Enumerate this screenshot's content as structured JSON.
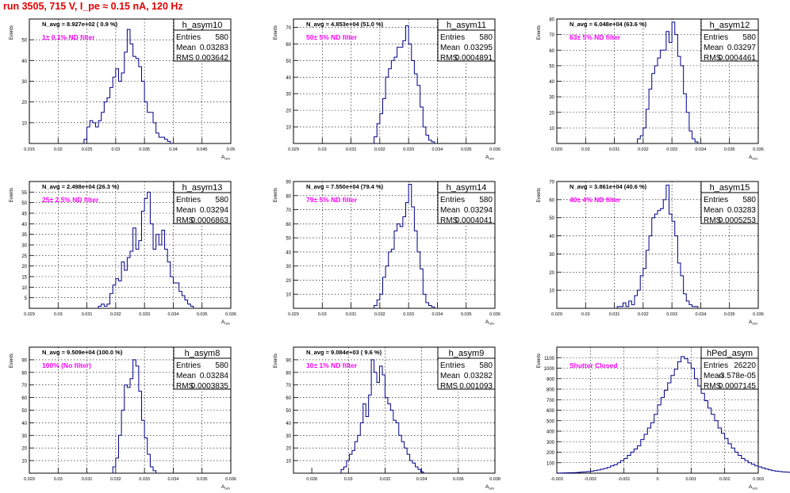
{
  "page": {
    "run_title": "run 3505,   715 V, I_pe ≈ 0.15 nA, 120 Hz"
  },
  "colors": {
    "histogram_line": "#00008b",
    "annotation": "#ff00ff",
    "title_text": "#e00000",
    "grid": "#000000"
  },
  "chart_data": [
    {
      "type": "histogram",
      "name": "h_asym10",
      "title": "h_asym10",
      "xlabel": "A_UID",
      "ylabel": "Events",
      "xlim": [
        0.015,
        0.05
      ],
      "ylim": [
        0,
        60
      ],
      "xticks": [
        0.015,
        0.02,
        0.025,
        0.03,
        0.035,
        0.04,
        0.045,
        0.05
      ],
      "xtick_labels": [
        "0.015",
        "0.02",
        "0.025",
        "0.03",
        "0.035",
        "0.04",
        "0.045",
        "0.05"
      ],
      "yticks": [
        10,
        20,
        30,
        40,
        50
      ],
      "stats": {
        "entries": "580",
        "mean": "0.03283",
        "rms": "0.003642"
      },
      "navg": "N_avg = 8.927e+02 ( 0.9 %)",
      "filter": "1± 0.1% ND filter",
      "bin_start": 0.0245,
      "bin_width": 0.0005,
      "values": [
        2,
        8,
        11,
        10,
        8,
        11,
        15,
        20,
        22,
        27,
        32,
        36,
        30,
        34,
        44,
        55,
        48,
        42,
        41,
        37,
        30,
        20,
        15,
        15,
        10,
        5,
        3,
        3,
        2,
        1
      ]
    },
    {
      "type": "histogram",
      "name": "h_asym11",
      "title": "h_asym11",
      "xlabel": "A_UID",
      "ylabel": "Events",
      "xlim": [
        0.029,
        0.036
      ],
      "ylim": [
        0,
        75
      ],
      "xticks": [
        0.029,
        0.03,
        0.031,
        0.032,
        0.033,
        0.034,
        0.035,
        0.036
      ],
      "xtick_labels": [
        "0.029",
        "0.03",
        "0.031",
        "0.032",
        "0.033",
        "0.034",
        "0.035",
        "0.036"
      ],
      "yticks": [
        10,
        20,
        30,
        40,
        50,
        60,
        70
      ],
      "stats": {
        "entries": "580",
        "mean": "0.03295",
        "rms": "0.0004891"
      },
      "navg": "N_avg = 4.853e+04 (51.0 %)",
      "filter": "50± 5% ND filter",
      "bin_start": 0.0318,
      "bin_width": 0.0001,
      "values": [
        4,
        12,
        18,
        27,
        40,
        45,
        50,
        52,
        58,
        58,
        62,
        71,
        60,
        50,
        42,
        35,
        22,
        10,
        5,
        2,
        1
      ]
    },
    {
      "type": "histogram",
      "name": "h_asym12",
      "title": "h_asym12",
      "xlabel": "A_UID",
      "ylabel": "Events",
      "xlim": [
        0.029,
        0.036
      ],
      "ylim": [
        0,
        80
      ],
      "xticks": [
        0.029,
        0.03,
        0.031,
        0.032,
        0.033,
        0.034,
        0.035,
        0.036
      ],
      "xtick_labels": [
        "0.029",
        "0.03",
        "0.031",
        "0.032",
        "0.033",
        "0.034",
        "0.035",
        "0.036"
      ],
      "yticks": [
        10,
        20,
        30,
        40,
        50,
        60,
        70,
        80
      ],
      "stats": {
        "entries": "580",
        "mean": "0.03297",
        "rms": "0.0004461"
      },
      "navg": "N_avg = 6.048e+04 (63.6 %)",
      "filter": "63± 5% ND filter",
      "bin_start": 0.0318,
      "bin_width": 0.0001,
      "values": [
        3,
        5,
        10,
        22,
        35,
        45,
        50,
        55,
        60,
        60,
        72,
        65,
        78,
        70,
        56,
        50,
        32,
        20,
        8,
        3,
        1
      ]
    },
    {
      "type": "histogram",
      "name": "h_asym13",
      "title": "h_asym13",
      "xlabel": "A_UID",
      "ylabel": "Events",
      "xlim": [
        0.029,
        0.036
      ],
      "ylim": [
        0,
        60
      ],
      "xticks": [
        0.029,
        0.03,
        0.031,
        0.032,
        0.033,
        0.034,
        0.035,
        0.036
      ],
      "xtick_labels": [
        "0.029",
        "0.03",
        "0.031",
        "0.032",
        "0.033",
        "0.034",
        "0.035",
        "0.036"
      ],
      "yticks": [
        5,
        10,
        15,
        20,
        25,
        30,
        35,
        40,
        45,
        50,
        55
      ],
      "stats": {
        "entries": "580",
        "mean": "0.03294",
        "rms": "0.0006863"
      },
      "navg": "N_avg = 2.498e+04 (26.3 %)",
      "filter": "25± 2.5% ND filter",
      "bin_start": 0.0314,
      "bin_width": 0.0001,
      "values": [
        1,
        2,
        1,
        2,
        7,
        11,
        14,
        13,
        22,
        18,
        24,
        27,
        38,
        28,
        32,
        46,
        52,
        55,
        40,
        28,
        35,
        30,
        37,
        28,
        22,
        15,
        12,
        12,
        8,
        6,
        4,
        2,
        1
      ]
    },
    {
      "type": "histogram",
      "name": "h_asym14",
      "title": "h_asym14",
      "xlabel": "A_UID",
      "ylabel": "Events",
      "xlim": [
        0.029,
        0.036
      ],
      "ylim": [
        0,
        90
      ],
      "xticks": [
        0.029,
        0.03,
        0.031,
        0.032,
        0.033,
        0.034,
        0.035,
        0.036
      ],
      "xtick_labels": [
        "0.029",
        "0.03",
        "0.031",
        "0.032",
        "0.033",
        "0.034",
        "0.035",
        "0.036"
      ],
      "yticks": [
        10,
        20,
        30,
        40,
        50,
        60,
        70,
        80,
        90
      ],
      "stats": {
        "entries": "580",
        "mean": "0.03294",
        "rms": "0.0004041"
      },
      "navg": "N_avg = 7.550e+04 (79.4 %)",
      "filter": "79± 5% ND filter",
      "bin_start": 0.0318,
      "bin_width": 0.0001,
      "values": [
        2,
        6,
        10,
        22,
        30,
        40,
        42,
        55,
        60,
        58,
        65,
        75,
        88,
        72,
        55,
        40,
        28,
        10,
        4,
        2,
        1
      ]
    },
    {
      "type": "histogram",
      "name": "h_asym15",
      "title": "h_asym15",
      "xlabel": "A_UID",
      "ylabel": "Events",
      "xlim": [
        0.029,
        0.036
      ],
      "ylim": [
        0,
        70
      ],
      "xticks": [
        0.029,
        0.03,
        0.031,
        0.032,
        0.033,
        0.034,
        0.035,
        0.036
      ],
      "xtick_labels": [
        "0.029",
        "0.03",
        "0.031",
        "0.032",
        "0.033",
        "0.034",
        "0.035",
        "0.036"
      ],
      "yticks": [
        10,
        20,
        30,
        40,
        50,
        60,
        70
      ],
      "stats": {
        "entries": "580",
        "mean": "0.03283",
        "rms": "0.0005253"
      },
      "navg": "N_avg = 3.861e+04 (40.6 %)",
      "filter": "40± 4% ND filter",
      "bin_start": 0.0311,
      "bin_width": 0.0001,
      "values": [
        1,
        1,
        3,
        1,
        4,
        2,
        7,
        10,
        18,
        22,
        32,
        40,
        50,
        52,
        54,
        55,
        60,
        68,
        52,
        48,
        40,
        25,
        18,
        8,
        4,
        2,
        1,
        1
      ]
    },
    {
      "type": "histogram",
      "name": "h_asym8",
      "title": "h_asym8",
      "xlabel": "A_UID",
      "ylabel": "Events",
      "xlim": [
        0.029,
        0.036
      ],
      "ylim": [
        0,
        100
      ],
      "xticks": [
        0.029,
        0.03,
        0.031,
        0.032,
        0.033,
        0.034,
        0.035,
        0.036
      ],
      "xtick_labels": [
        "0.029",
        "0.03",
        "0.031",
        "0.032",
        "0.033",
        "0.034",
        "0.035",
        "0.036"
      ],
      "yticks": [
        10,
        20,
        30,
        40,
        50,
        60,
        70,
        80,
        90
      ],
      "stats": {
        "entries": "580",
        "mean": "0.03284",
        "rms": "0.0003835"
      },
      "navg": "N_avg = 9.509e+04 (100.0 %)",
      "filter": "100% (No filter)",
      "bin_start": 0.0319,
      "bin_width": 0.0001,
      "values": [
        5,
        12,
        30,
        50,
        70,
        68,
        75,
        90,
        85,
        65,
        42,
        28,
        15,
        5,
        2
      ]
    },
    {
      "type": "histogram",
      "name": "h_asym9",
      "title": "h_asym9",
      "xlabel": "A_UID",
      "ylabel": "Events",
      "xlim": [
        0.027,
        0.038
      ],
      "ylim": [
        0,
        100
      ],
      "xticks": [
        0.028,
        0.03,
        0.032,
        0.034,
        0.036,
        0.038
      ],
      "xtick_labels": [
        "0.028",
        "0.03",
        "0.032",
        "0.034",
        "0.036",
        "0.038"
      ],
      "yticks": [
        10,
        20,
        30,
        40,
        50,
        60,
        70,
        80,
        90
      ],
      "stats": {
        "entries": "580",
        "mean": "0.03282",
        "rms": "0.001093"
      },
      "navg": "N_avg = 9.084e+03 ( 9.6 %)",
      "filter": "10± 1% ND filter",
      "bin_start": 0.0296,
      "bin_width": 0.00015,
      "values": [
        3,
        5,
        10,
        15,
        18,
        25,
        30,
        40,
        55,
        45,
        62,
        90,
        80,
        72,
        85,
        78,
        60,
        55,
        50,
        42,
        40,
        30,
        25,
        20,
        15,
        10,
        8,
        5,
        3,
        1
      ]
    },
    {
      "type": "histogram",
      "name": "hPed_asym",
      "title": "hPed_asym",
      "xlabel": "A_UID",
      "ylabel": "Events",
      "xlim": [
        -0.003,
        0.003
      ],
      "ylim": [
        0,
        1200
      ],
      "xticks": [
        -0.003,
        -0.002,
        -0.001,
        0,
        0.001,
        0.002,
        0.003
      ],
      "xtick_labels": [
        "-0.003",
        "-0.002",
        "-0.001",
        "0",
        "0.001",
        "0.002",
        "0.003"
      ],
      "yticks": [
        100,
        200,
        300,
        400,
        500,
        600,
        700,
        800,
        900,
        1000,
        1100
      ],
      "stats": {
        "entries": "26220",
        "mean": "-3.578e-05",
        "rms": "0.0007145"
      },
      "navg": "",
      "filter": "Shutter Closed",
      "bin_start": -0.003,
      "bin_width": 0.0001,
      "values": [
        1,
        2,
        3,
        4,
        5,
        6,
        8,
        10,
        12,
        15,
        20,
        25,
        30,
        38,
        45,
        55,
        70,
        80,
        100,
        120,
        140,
        170,
        200,
        230,
        260,
        320,
        370,
        430,
        480,
        560,
        650,
        720,
        790,
        860,
        930,
        990,
        1060,
        1110,
        1090,
        1050,
        1000,
        900,
        830,
        760,
        690,
        620,
        560,
        500,
        430,
        380,
        330,
        280,
        240,
        200,
        170,
        140,
        120,
        100,
        85,
        70,
        60,
        50,
        40,
        32,
        25,
        20,
        16,
        12,
        10,
        8,
        6,
        5,
        4,
        3,
        2,
        2,
        1,
        1,
        1,
        0,
        1,
        0,
        0,
        0,
        0,
        0,
        0,
        0,
        0,
        0,
        0,
        0,
        0,
        0,
        0,
        0,
        0,
        0,
        0,
        0,
        0,
        0,
        0,
        0,
        0,
        0,
        0,
        0,
        0,
        0,
        0,
        0,
        0,
        0,
        0,
        0,
        0,
        0
      ]
    }
  ]
}
